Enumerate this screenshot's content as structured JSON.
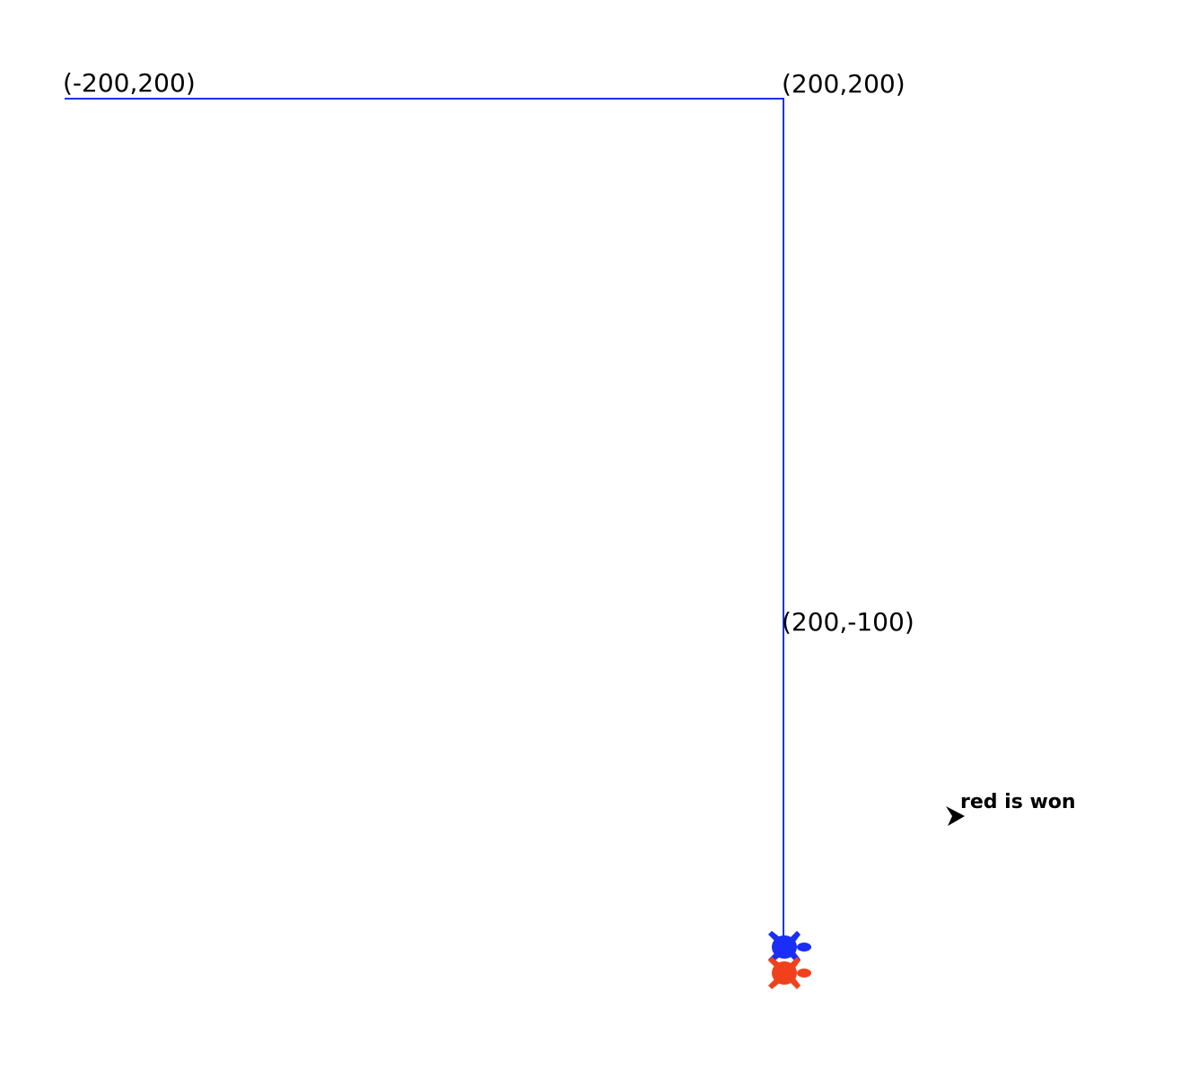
{
  "scene": {
    "background": "#ffffff",
    "track_color": "#1a33e8",
    "labels": {
      "top_left": "(-200,200)",
      "top_right": "(200,200)",
      "mid_right": "(200,-100)"
    },
    "status": "red is won"
  },
  "turtles": [
    {
      "name": "blue",
      "color": "#1a2ef5",
      "icon": "turtle-icon"
    },
    {
      "name": "red",
      "color": "#f0411c",
      "icon": "turtle-icon"
    }
  ],
  "writer": {
    "icon": "arrow-cursor-icon",
    "color": "#000000"
  }
}
